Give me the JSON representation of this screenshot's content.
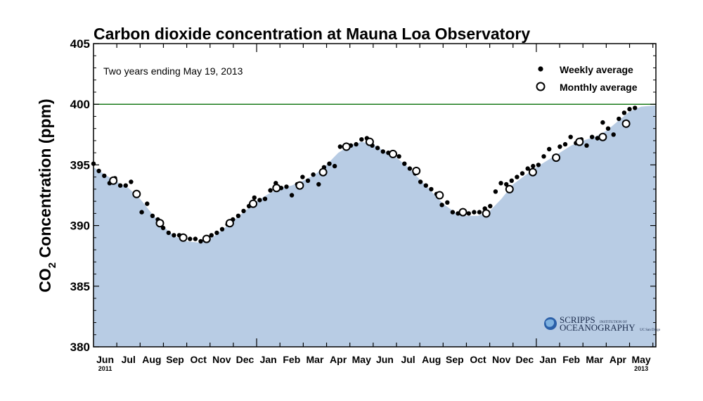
{
  "chart_data": {
    "type": "scatter",
    "title": "Carbon dioxide concentration at Mauna Loa Observatory",
    "annotation": "Two years ending May 19, 2013",
    "ylabel_main": "CO",
    "ylabel_sub": "2",
    "ylabel_rest": " Concentration (ppm)",
    "ylim": [
      380,
      405
    ],
    "y_ticks": [
      "380",
      "385",
      "390",
      "395",
      "400",
      "405"
    ],
    "y_tick_values": [
      380,
      385,
      390,
      395,
      400,
      405
    ],
    "reference_line": 400,
    "reference_color": "#1a7a1a",
    "fill_color": "#b8cce4",
    "x_range": [
      0,
      24.13
    ],
    "x_ticks": [
      {
        "label": "Jun",
        "x": 0.5
      },
      {
        "label": "Jul",
        "x": 1.5
      },
      {
        "label": "Aug",
        "x": 2.5
      },
      {
        "label": "Sep",
        "x": 3.5
      },
      {
        "label": "Oct",
        "x": 4.5
      },
      {
        "label": "Nov",
        "x": 5.5
      },
      {
        "label": "Dec",
        "x": 6.5
      },
      {
        "label": "Jan",
        "x": 7.5
      },
      {
        "label": "Feb",
        "x": 8.5
      },
      {
        "label": "Mar",
        "x": 9.5
      },
      {
        "label": "Apr",
        "x": 10.5
      },
      {
        "label": "May",
        "x": 11.5
      },
      {
        "label": "Jun",
        "x": 12.5
      },
      {
        "label": "Jul",
        "x": 13.5
      },
      {
        "label": "Aug",
        "x": 14.5
      },
      {
        "label": "Sep",
        "x": 15.5
      },
      {
        "label": "Oct",
        "x": 16.5
      },
      {
        "label": "Nov",
        "x": 17.5
      },
      {
        "label": "Dec",
        "x": 18.5
      },
      {
        "label": "Jan",
        "x": 19.5
      },
      {
        "label": "Feb",
        "x": 20.5
      },
      {
        "label": "Mar",
        "x": 21.5
      },
      {
        "label": "Apr",
        "x": 22.5
      },
      {
        "label": "May",
        "x": 23.5
      }
    ],
    "year_labels": [
      {
        "label": "2011",
        "x": 0.5
      },
      {
        "label": "2013",
        "x": 23.5
      }
    ],
    "legend": {
      "position": "top-right",
      "weekly_label": "Weekly average",
      "monthly_label": "Monthly average"
    },
    "series": [
      {
        "name": "Weekly average",
        "marker": "filled-dot",
        "points": [
          [
            0.0,
            395.1
          ],
          [
            0.23,
            394.5
          ],
          [
            0.46,
            394.1
          ],
          [
            0.69,
            393.5
          ],
          [
            0.92,
            393.9
          ],
          [
            1.15,
            393.3
          ],
          [
            1.38,
            393.3
          ],
          [
            1.61,
            393.6
          ],
          [
            1.84,
            392.7
          ],
          [
            2.07,
            391.1
          ],
          [
            2.3,
            391.8
          ],
          [
            2.53,
            390.8
          ],
          [
            2.76,
            390.5
          ],
          [
            2.99,
            389.8
          ],
          [
            3.22,
            389.4
          ],
          [
            3.45,
            389.2
          ],
          [
            3.68,
            389.2
          ],
          [
            3.91,
            389.1
          ],
          [
            4.14,
            388.9
          ],
          [
            4.37,
            388.9
          ],
          [
            4.6,
            388.7
          ],
          [
            4.83,
            388.8
          ],
          [
            5.06,
            389.2
          ],
          [
            5.29,
            389.4
          ],
          [
            5.52,
            389.7
          ],
          [
            5.75,
            390.1
          ],
          [
            5.98,
            390.5
          ],
          [
            6.21,
            390.8
          ],
          [
            6.44,
            391.2
          ],
          [
            6.67,
            391.6
          ],
          [
            6.9,
            392.3
          ],
          [
            7.13,
            392.1
          ],
          [
            7.36,
            392.2
          ],
          [
            7.59,
            392.9
          ],
          [
            7.82,
            393.5
          ],
          [
            8.05,
            393.1
          ],
          [
            8.28,
            393.2
          ],
          [
            8.51,
            392.5
          ],
          [
            8.74,
            393.4
          ],
          [
            8.97,
            394.0
          ],
          [
            9.2,
            393.7
          ],
          [
            9.43,
            394.2
          ],
          [
            9.66,
            393.4
          ],
          [
            9.89,
            394.8
          ],
          [
            10.12,
            395.1
          ],
          [
            10.35,
            394.9
          ],
          [
            10.58,
            396.5
          ],
          [
            10.81,
            396.4
          ],
          [
            11.04,
            396.6
          ],
          [
            11.27,
            396.7
          ],
          [
            11.5,
            397.1
          ],
          [
            11.73,
            397.2
          ],
          [
            11.96,
            396.6
          ],
          [
            12.19,
            396.4
          ],
          [
            12.42,
            396.1
          ],
          [
            12.65,
            396.0
          ],
          [
            12.88,
            395.9
          ],
          [
            13.11,
            395.7
          ],
          [
            13.34,
            395.1
          ],
          [
            13.57,
            394.7
          ],
          [
            13.8,
            394.3
          ],
          [
            14.03,
            393.6
          ],
          [
            14.26,
            393.3
          ],
          [
            14.49,
            393.0
          ],
          [
            14.72,
            392.6
          ],
          [
            14.95,
            391.7
          ],
          [
            15.18,
            391.9
          ],
          [
            15.41,
            391.1
          ],
          [
            15.64,
            391.0
          ],
          [
            15.87,
            391.0
          ],
          [
            16.1,
            391.0
          ],
          [
            16.33,
            391.1
          ],
          [
            16.56,
            391.1
          ],
          [
            16.79,
            391.4
          ],
          [
            17.02,
            391.6
          ],
          [
            17.25,
            392.8
          ],
          [
            17.48,
            393.5
          ],
          [
            17.71,
            393.4
          ],
          [
            17.94,
            393.7
          ],
          [
            18.17,
            394.0
          ],
          [
            18.4,
            394.3
          ],
          [
            18.63,
            394.7
          ],
          [
            18.86,
            394.9
          ],
          [
            19.09,
            395.0
          ],
          [
            19.32,
            395.7
          ],
          [
            19.55,
            396.3
          ],
          [
            19.78,
            395.7
          ],
          [
            20.01,
            396.5
          ],
          [
            20.24,
            396.7
          ],
          [
            20.47,
            397.3
          ],
          [
            20.7,
            396.8
          ],
          [
            20.93,
            397.1
          ],
          [
            21.16,
            396.6
          ],
          [
            21.39,
            397.3
          ],
          [
            21.62,
            397.2
          ],
          [
            21.85,
            398.5
          ],
          [
            22.08,
            398.0
          ],
          [
            22.31,
            397.5
          ],
          [
            22.54,
            398.8
          ],
          [
            22.77,
            399.3
          ],
          [
            23.0,
            399.6
          ],
          [
            23.23,
            399.7
          ]
        ]
      },
      {
        "name": "Monthly average",
        "marker": "open-circle",
        "points": [
          [
            0.85,
            393.7
          ],
          [
            1.85,
            392.6
          ],
          [
            2.85,
            390.2
          ],
          [
            3.85,
            389.0
          ],
          [
            4.85,
            388.9
          ],
          [
            5.85,
            390.2
          ],
          [
            6.85,
            391.8
          ],
          [
            7.85,
            393.1
          ],
          [
            8.85,
            393.3
          ],
          [
            9.85,
            394.4
          ],
          [
            10.85,
            396.5
          ],
          [
            11.85,
            396.9
          ],
          [
            12.85,
            395.9
          ],
          [
            13.85,
            394.5
          ],
          [
            14.85,
            392.5
          ],
          [
            15.85,
            391.1
          ],
          [
            16.85,
            391.0
          ],
          [
            17.85,
            393.0
          ],
          [
            18.85,
            394.4
          ],
          [
            19.85,
            395.6
          ],
          [
            20.85,
            396.9
          ],
          [
            21.85,
            397.3
          ],
          [
            22.85,
            398.4
          ]
        ]
      }
    ],
    "fill_curve": [
      [
        0.0,
        394.8
      ],
      [
        0.5,
        394.2
      ],
      [
        1.0,
        393.6
      ],
      [
        1.5,
        393.1
      ],
      [
        2.0,
        392.2
      ],
      [
        2.5,
        391.0
      ],
      [
        3.0,
        389.9
      ],
      [
        3.5,
        389.1
      ],
      [
        4.0,
        388.7
      ],
      [
        4.5,
        388.6
      ],
      [
        5.0,
        388.9
      ],
      [
        5.5,
        389.6
      ],
      [
        6.0,
        390.4
      ],
      [
        6.5,
        391.2
      ],
      [
        7.0,
        392.0
      ],
      [
        7.5,
        392.6
      ],
      [
        8.0,
        393.1
      ],
      [
        8.5,
        393.3
      ],
      [
        9.0,
        393.7
      ],
      [
        9.5,
        394.2
      ],
      [
        10.0,
        395.0
      ],
      [
        10.5,
        396.0
      ],
      [
        11.0,
        396.6
      ],
      [
        11.5,
        396.9
      ],
      [
        12.0,
        396.7
      ],
      [
        12.5,
        396.1
      ],
      [
        13.0,
        395.6
      ],
      [
        13.5,
        394.8
      ],
      [
        14.0,
        393.8
      ],
      [
        14.5,
        392.8
      ],
      [
        15.0,
        391.8
      ],
      [
        15.5,
        391.1
      ],
      [
        16.0,
        390.8
      ],
      [
        16.5,
        390.8
      ],
      [
        17.0,
        391.2
      ],
      [
        17.5,
        392.2
      ],
      [
        18.0,
        393.4
      ],
      [
        18.5,
        394.1
      ],
      [
        19.0,
        394.8
      ],
      [
        19.5,
        395.4
      ],
      [
        20.0,
        396.0
      ],
      [
        20.5,
        396.6
      ],
      [
        21.0,
        397.0
      ],
      [
        21.5,
        397.3
      ],
      [
        22.0,
        397.8
      ],
      [
        22.5,
        398.6
      ],
      [
        23.0,
        399.4
      ],
      [
        23.5,
        399.8
      ],
      [
        24.13,
        399.9
      ]
    ]
  },
  "logo": {
    "line1": "SCRIPPS",
    "line1_small": "INSTITUTION OF",
    "line2": "OCEANOGRAPHY",
    "line2_small": "UC San Diego"
  }
}
